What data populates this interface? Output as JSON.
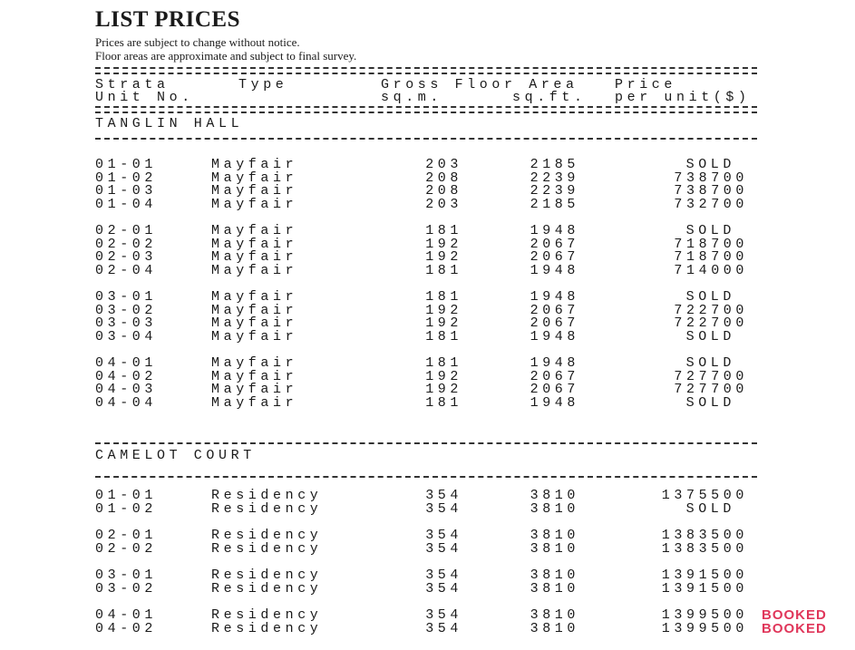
{
  "title": "LIST PRICES",
  "notes": [
    "Prices are subject to change without notice.",
    "Floor areas are approximate and subject to final survey."
  ],
  "headers": {
    "unit1": "Strata",
    "unit2": "Unit No.",
    "type": "Type",
    "gfa": "Gross Floor Area",
    "sqm": "sq.m.",
    "sqft": "sq.ft.",
    "price1": "Price",
    "price2": "per unit($)"
  },
  "sections": [
    {
      "name": "TANGLIN HALL",
      "groups": [
        [
          [
            "01-01",
            "Mayfair",
            "203",
            "2185",
            "SOLD"
          ],
          [
            "01-02",
            "Mayfair",
            "208",
            "2239",
            "738700"
          ],
          [
            "01-03",
            "Mayfair",
            "208",
            "2239",
            "738700"
          ],
          [
            "01-04",
            "Mayfair",
            "203",
            "2185",
            "732700"
          ]
        ],
        [
          [
            "02-01",
            "Mayfair",
            "181",
            "1948",
            "SOLD"
          ],
          [
            "02-02",
            "Mayfair",
            "192",
            "2067",
            "718700"
          ],
          [
            "02-03",
            "Mayfair",
            "192",
            "2067",
            "718700"
          ],
          [
            "02-04",
            "Mayfair",
            "181",
            "1948",
            "714000"
          ]
        ],
        [
          [
            "03-01",
            "Mayfair",
            "181",
            "1948",
            "SOLD"
          ],
          [
            "03-02",
            "Mayfair",
            "192",
            "2067",
            "722700"
          ],
          [
            "03-03",
            "Mayfair",
            "192",
            "2067",
            "722700"
          ],
          [
            "03-04",
            "Mayfair",
            "181",
            "1948",
            "SOLD"
          ]
        ],
        [
          [
            "04-01",
            "Mayfair",
            "181",
            "1948",
            "SOLD"
          ],
          [
            "04-02",
            "Mayfair",
            "192",
            "2067",
            "727700"
          ],
          [
            "04-03",
            "Mayfair",
            "192",
            "2067",
            "727700"
          ],
          [
            "04-04",
            "Mayfair",
            "181",
            "1948",
            "SOLD"
          ]
        ]
      ]
    },
    {
      "name": "CAMELOT COURT",
      "groups": [
        [
          [
            "01-01",
            "Residency",
            "354",
            "3810",
            "1375500"
          ],
          [
            "01-02",
            "Residency",
            "354",
            "3810",
            "SOLD"
          ]
        ],
        [
          [
            "02-01",
            "Residency",
            "354",
            "3810",
            "1383500"
          ],
          [
            "02-02",
            "Residency",
            "354",
            "3810",
            "1383500"
          ]
        ],
        [
          [
            "03-01",
            "Residency",
            "354",
            "3810",
            "1391500"
          ],
          [
            "03-02",
            "Residency",
            "354",
            "3810",
            "1391500"
          ]
        ],
        [
          [
            "04-01",
            "Residency",
            "354",
            "3810",
            "1399500"
          ],
          [
            "04-02",
            "Residency",
            "354",
            "3810",
            "1399500"
          ]
        ]
      ]
    }
  ],
  "stamp": "BOOKED",
  "stamp_color": "#e0365a"
}
